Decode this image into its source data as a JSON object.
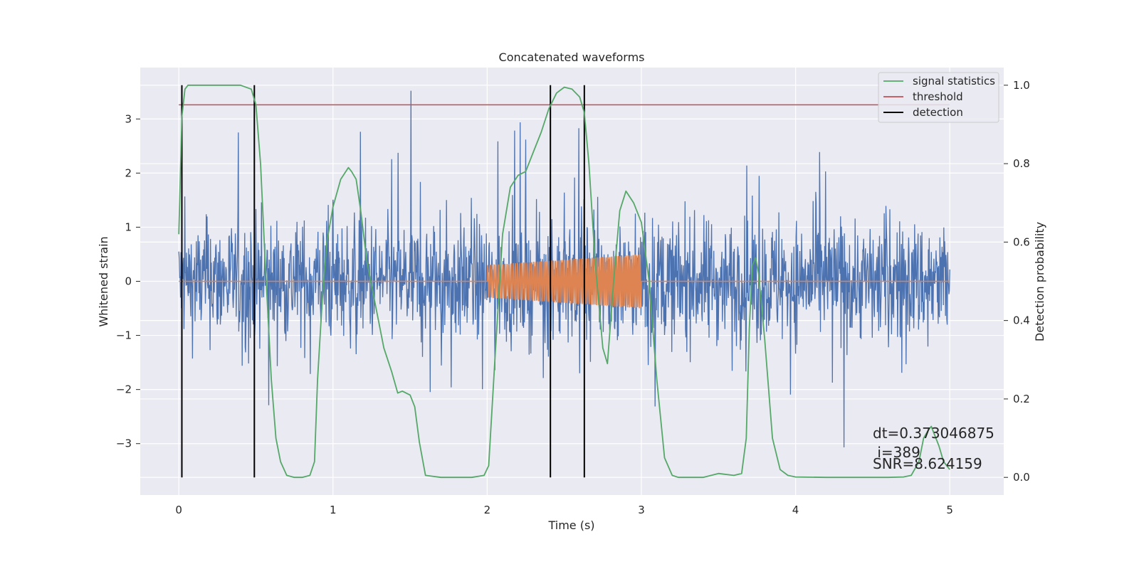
{
  "chart_data": {
    "type": "line",
    "title": "Concatenated waveforms",
    "xlabel": "Time (s)",
    "ylabel": "Whitened strain",
    "y2label": "Detection probability",
    "xlim": [
      -0.25,
      5.35
    ],
    "ylim": [
      -3.95,
      3.95
    ],
    "y2lim": [
      -0.045,
      1.045
    ],
    "xticks": [
      "0",
      "1",
      "2",
      "3",
      "4",
      "5"
    ],
    "yticks": [
      "−3",
      "−2",
      "−1",
      "0",
      "1",
      "2",
      "3"
    ],
    "y2ticks": [
      "0.0",
      "0.2",
      "0.4",
      "0.6",
      "0.8",
      "1.0"
    ],
    "grid": true,
    "legend_position": "top-right",
    "legend": [
      "signal statistics",
      "threshold",
      "detection"
    ],
    "annotations": [
      "dt=0.373046875",
      " i=389",
      "SNR=8.624159"
    ],
    "colors": {
      "background": "#eaeaf2",
      "strain": "#4c72b0",
      "injected_signal": "#dd8452",
      "signal_statistics": "#55a868",
      "threshold": "#c44e52",
      "detection": "#000000"
    },
    "strain": {
      "x_range": [
        0,
        5
      ],
      "typical_envelope": [
        -1.6,
        1.6
      ],
      "peak_envelope": [
        -3.6,
        3.6
      ]
    },
    "injected_signal": {
      "x_range": [
        2.0,
        3.0
      ],
      "amplitude_start": 0.3,
      "amplitude_end": 0.5,
      "baseline": 0
    },
    "threshold": {
      "x": [
        0,
        5
      ],
      "y": 0.95
    },
    "detections": [
      0.02,
      0.49,
      2.41,
      2.63
    ],
    "detection_y_range": [
      0.0,
      1.0
    ],
    "series": [
      {
        "name": "signal statistics",
        "x": [
          0,
          0.02,
          0.04,
          0.06,
          0.1,
          0.2,
          0.3,
          0.4,
          0.47,
          0.5,
          0.53,
          0.56,
          0.6,
          0.63,
          0.66,
          0.7,
          0.75,
          0.8,
          0.85,
          0.88,
          0.9,
          0.93,
          0.96,
          1.0,
          1.05,
          1.1,
          1.12,
          1.15,
          1.18,
          1.22,
          1.28,
          1.33,
          1.38,
          1.42,
          1.45,
          1.5,
          1.53,
          1.56,
          1.6,
          1.7,
          1.8,
          1.9,
          1.98,
          2.01,
          2.05,
          2.1,
          2.15,
          2.2,
          2.25,
          2.3,
          2.35,
          2.4,
          2.45,
          2.5,
          2.55,
          2.6,
          2.63,
          2.66,
          2.7,
          2.75,
          2.78,
          2.82,
          2.86,
          2.9,
          2.95,
          3.0,
          3.05,
          3.1,
          3.15,
          3.2,
          3.24,
          3.3,
          3.4,
          3.5,
          3.6,
          3.65,
          3.68,
          3.7,
          3.72,
          3.74,
          3.76,
          3.8,
          3.85,
          3.9,
          3.95,
          4.0,
          4.2,
          4.4,
          4.6,
          4.7,
          4.75,
          4.8,
          4.83,
          4.86,
          4.88,
          4.9,
          4.93,
          4.96,
          5.0
        ],
        "y": [
          0.62,
          0.92,
          0.99,
          1.0,
          1.0,
          1.0,
          1.0,
          1.0,
          0.99,
          0.95,
          0.8,
          0.55,
          0.25,
          0.1,
          0.04,
          0.005,
          0.0,
          0.0,
          0.005,
          0.04,
          0.25,
          0.45,
          0.6,
          0.69,
          0.76,
          0.79,
          0.78,
          0.76,
          0.68,
          0.55,
          0.43,
          0.33,
          0.27,
          0.215,
          0.22,
          0.21,
          0.18,
          0.09,
          0.005,
          0.0,
          0.0,
          0.0,
          0.005,
          0.03,
          0.3,
          0.62,
          0.74,
          0.77,
          0.78,
          0.83,
          0.88,
          0.94,
          0.98,
          0.995,
          0.99,
          0.97,
          0.93,
          0.8,
          0.55,
          0.33,
          0.29,
          0.5,
          0.68,
          0.73,
          0.7,
          0.65,
          0.5,
          0.25,
          0.05,
          0.005,
          0.0,
          0.0,
          0.0,
          0.01,
          0.005,
          0.01,
          0.1,
          0.38,
          0.54,
          0.56,
          0.52,
          0.35,
          0.1,
          0.02,
          0.005,
          0.001,
          0.0,
          0.0,
          0.0,
          0.001,
          0.005,
          0.04,
          0.1,
          0.12,
          0.13,
          0.11,
          0.08,
          0.04,
          0.02
        ]
      }
    ]
  }
}
